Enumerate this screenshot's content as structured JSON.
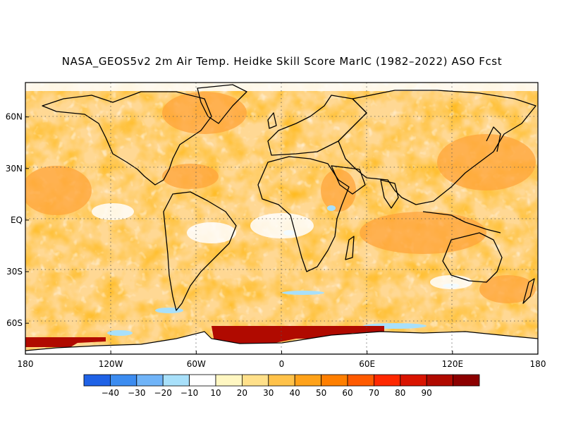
{
  "title": "NASA_GEOS5v2 2m Air Temp. Heidke Skill Score MarIC (1982–2022) ASO Fcst",
  "map": {
    "lon_range": [
      -180,
      180
    ],
    "lat_range": [
      -78,
      80
    ],
    "gridlines": "dotted",
    "x_ticks": [
      {
        "lon": -180,
        "label": "180"
      },
      {
        "lon": -120,
        "label": "120W"
      },
      {
        "lon": -60,
        "label": "60W"
      },
      {
        "lon": 0,
        "label": "0"
      },
      {
        "lon": 60,
        "label": "60E"
      },
      {
        "lon": 120,
        "label": "120E"
      },
      {
        "lon": 180,
        "label": "180"
      }
    ],
    "y_ticks": [
      {
        "lat": 60,
        "label": "60N"
      },
      {
        "lat": 30,
        "label": "30N"
      },
      {
        "lat": 0,
        "label": "EQ"
      },
      {
        "lat": -30,
        "label": "30S"
      },
      {
        "lat": -60,
        "label": "60S"
      }
    ]
  },
  "colorbar": {
    "placement": "bottom",
    "colors": [
      "#1f62e6",
      "#3c8cf0",
      "#70b4f8",
      "#a8e0fa",
      "#ffffff",
      "#fff7c2",
      "#ffe08a",
      "#ffc24a",
      "#ffa21a",
      "#ff7f00",
      "#ff5a00",
      "#ff2800",
      "#d91400",
      "#b00a00",
      "#8c0000"
    ],
    "labels": [
      "−40",
      "−30",
      "−20",
      "−10",
      "10",
      "20",
      "30",
      "40",
      "50",
      "60",
      "70",
      "80",
      "90"
    ]
  }
}
